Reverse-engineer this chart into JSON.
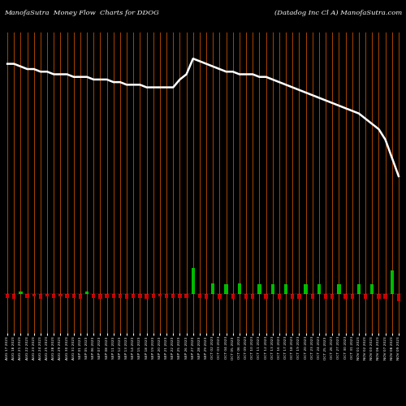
{
  "title_left": "ManofaSutra  Money Flow  Charts for DDOG",
  "title_right": "(Datadog Inc Cl A) ManofaSutra.com",
  "background_color": "#000000",
  "bar_color_positive": "#00bb00",
  "bar_color_negative": "#cc0000",
  "line_color": "#ffffff",
  "vline_color": "#aa4400",
  "n_bars": 60,
  "price_line": [
    88,
    88,
    87,
    86,
    86,
    85,
    85,
    84,
    84,
    84,
    83,
    83,
    83,
    82,
    82,
    82,
    81,
    81,
    80,
    80,
    80,
    79,
    79,
    79,
    79,
    79,
    82,
    84,
    90,
    89,
    88,
    87,
    86,
    85,
    85,
    84,
    84,
    84,
    83,
    83,
    82,
    81,
    80,
    79,
    78,
    77,
    76,
    75,
    74,
    73,
    72,
    71,
    70,
    69,
    67,
    65,
    63,
    59,
    52,
    45
  ],
  "bar_values": [
    -1.5,
    -2,
    0.8,
    -1.5,
    -1,
    -2,
    -1,
    -1.5,
    -1,
    -1.5,
    -1.5,
    -2,
    0.8,
    -1.5,
    -2,
    -1.5,
    -1.5,
    -1.5,
    -2,
    -1.5,
    -1.5,
    -2,
    -1.5,
    -1,
    -1.5,
    -1.5,
    -1.5,
    -1.5,
    10,
    -1.5,
    -2,
    4,
    -2,
    3.5,
    -2,
    4,
    -2,
    -2,
    3.5,
    -2,
    3.5,
    -2,
    3.5,
    -2,
    -2,
    3.5,
    -2,
    3.5,
    -2,
    -2,
    3.5,
    -2,
    -2,
    3.5,
    -2,
    3.5,
    -2,
    -2,
    9,
    -3
  ],
  "bar_colors": [
    "red",
    "red",
    "green",
    "red",
    "red",
    "red",
    "red",
    "red",
    "red",
    "red",
    "red",
    "red",
    "green",
    "red",
    "red",
    "red",
    "red",
    "red",
    "red",
    "red",
    "red",
    "red",
    "red",
    "red",
    "red",
    "red",
    "red",
    "red",
    "green",
    "red",
    "red",
    "green",
    "red",
    "green",
    "red",
    "green",
    "red",
    "red",
    "green",
    "red",
    "green",
    "red",
    "green",
    "red",
    "red",
    "green",
    "red",
    "green",
    "red",
    "red",
    "green",
    "red",
    "red",
    "green",
    "red",
    "green",
    "red",
    "red",
    "green",
    "red"
  ],
  "xlabels": [
    "AUG 17 2023",
    "AUG 18 2023",
    "AUG 21 2023",
    "AUG 22 2023",
    "AUG 23 2023",
    "AUG 24 2023",
    "AUG 25 2023",
    "AUG 28 2023",
    "AUG 29 2023",
    "AUG 30 2023",
    "AUG 31 2023",
    "SEP 01 2023",
    "SEP 05 2023",
    "SEP 06 2023",
    "SEP 07 2023",
    "SEP 08 2023",
    "SEP 11 2023",
    "SEP 12 2023",
    "SEP 13 2023",
    "SEP 14 2023",
    "SEP 15 2023",
    "SEP 18 2023",
    "SEP 19 2023",
    "SEP 20 2023",
    "SEP 21 2023",
    "SEP 22 2023",
    "SEP 25 2023",
    "SEP 26 2023",
    "SEP 27 2023",
    "SEP 28 2023",
    "SEP 29 2023",
    "OCT 02 2023",
    "OCT 03 2023",
    "OCT 04 2023",
    "OCT 05 2023",
    "OCT 06 2023",
    "OCT 09 2023",
    "OCT 10 2023",
    "OCT 11 2023",
    "OCT 12 2023",
    "OCT 13 2023",
    "OCT 16 2023",
    "OCT 17 2023",
    "OCT 18 2023",
    "OCT 19 2023",
    "OCT 20 2023",
    "OCT 23 2023",
    "OCT 24 2023",
    "OCT 25 2023",
    "OCT 26 2023",
    "OCT 27 2023",
    "OCT 30 2023",
    "OCT 31 2023",
    "NOV 01 2023",
    "NOV 02 2023",
    "NOV 03 2023",
    "NOV 06 2023",
    "NOV 07 2023",
    "NOV 08 2023",
    "NOV 09 2023"
  ],
  "figsize": [
    5.0,
    5.0
  ],
  "dpi": 100
}
